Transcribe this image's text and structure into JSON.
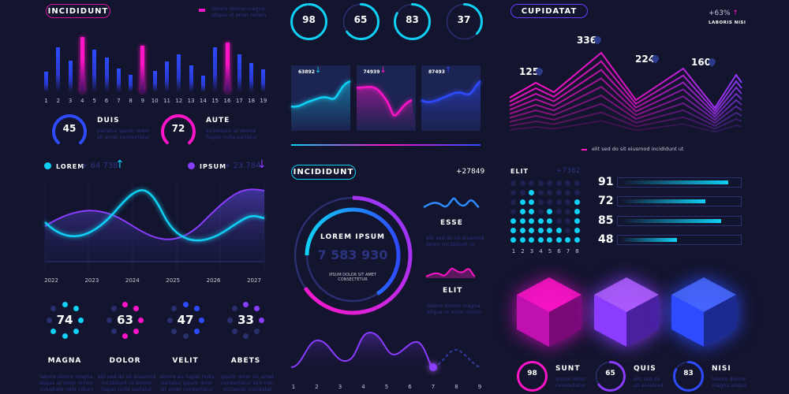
{
  "left": {
    "header_pill": "INCIDIDUNT",
    "legend_text_1": "labore dolore magna",
    "legend_text_2": "aliqua ut enim minim",
    "bars": {
      "categories": [
        "1",
        "2",
        "3",
        "4",
        "5",
        "6",
        "7",
        "8",
        "9",
        "10",
        "11",
        "12",
        "13",
        "14",
        "15",
        "16",
        "17",
        "18",
        "19"
      ],
      "values": [
        26,
        57,
        40,
        70,
        54,
        44,
        30,
        22,
        59,
        27,
        39,
        48,
        34,
        21,
        57,
        63,
        48,
        37,
        29
      ],
      "highlight": [
        false,
        false,
        false,
        true,
        false,
        false,
        false,
        false,
        true,
        false,
        false,
        false,
        false,
        false,
        false,
        true,
        false,
        false,
        false
      ]
    },
    "gauges": [
      {
        "value": "45",
        "title": "DUIS",
        "text1": "pariatur ipsum dolor",
        "text2": "sit amet consectetur",
        "color": "#2e4bff"
      },
      {
        "value": "72",
        "title": "AUTE",
        "text1": "incididunt ut dolore",
        "text2": "fugiat nulla pariatur",
        "color": "#ff14c8"
      }
    ],
    "lorem": {
      "label": "LOREM",
      "value": "+ 64 738",
      "arrow": "↑"
    },
    "ipsum": {
      "label": "IPSUM",
      "value": "+ 23 784",
      "arrow": "↓"
    },
    "years": [
      "2022",
      "2023",
      "2024",
      "2025",
      "2026",
      "2027"
    ],
    "dials": [
      {
        "value": "74",
        "title": "MAGNA",
        "lines": [
          "labore dolore magna",
          "aliqua ut enim minim",
          "voluptate velit cillum"
        ],
        "color": "#10d0f5",
        "on": [
          0,
          1,
          2,
          3,
          4,
          5
        ]
      },
      {
        "value": "63",
        "title": "DOLOR",
        "lines": [
          "elit sed do sit eiusmod",
          "incididunt ut dolore",
          "fugiat nulla pariatur"
        ],
        "color": "#ff14c8",
        "on": [
          0,
          1,
          2,
          3,
          4
        ]
      },
      {
        "value": "47",
        "title": "VELIT",
        "lines": [
          "dolore eu fugiat nulla",
          "pariatur ipsum dolor",
          "sit amet consectetur"
        ],
        "color": "#2e4bff",
        "on": [
          0,
          1,
          2,
          3
        ]
      },
      {
        "value": "33",
        "title": "ABETS",
        "lines": [
          "ipsum dolor sit amet",
          "consectetur sint non",
          "occaecat cupidatat"
        ],
        "color": "#8a3cff",
        "on": [
          0,
          1,
          2
        ]
      }
    ]
  },
  "middle": {
    "rings": [
      {
        "value": "98",
        "pct": 0.98
      },
      {
        "value": "65",
        "pct": 0.65
      },
      {
        "value": "83",
        "pct": 0.83
      },
      {
        "value": "37",
        "pct": 0.37
      }
    ],
    "cards": [
      {
        "value": "63892",
        "arrow": "↓",
        "color": "#10d0f5"
      },
      {
        "value": "74939",
        "arrow": "↓",
        "color": "#ff14c8"
      },
      {
        "value": "87493",
        "arrow": "↑",
        "color": "#2e4bff"
      }
    ],
    "pill": "INCIDIDUNT",
    "count": "+27849",
    "donut": {
      "title": "LOREM IPSUM",
      "value": "7 583 930",
      "sub1": "IPSUM DOLOR SIT AMET",
      "sub2": "CONSECTETUR"
    },
    "esse": {
      "title": "ESSE",
      "text1": "elit sed do sit eiusmod",
      "text2": "lorem incididunt ut"
    },
    "elit": {
      "title": "ELIT",
      "text1": "labore dolore magna",
      "text2": "aliqua ut enim minim"
    },
    "wave_ticks": [
      "1",
      "2",
      "3",
      "4",
      "5",
      "6",
      "7",
      "8",
      "9"
    ]
  },
  "right": {
    "pill": "CUPIDATAT",
    "pct": "+63%",
    "pct_arrow": "↑",
    "pct_label": "LABORIS NISI",
    "peaks": [
      "125",
      "336",
      "224",
      "160"
    ],
    "legend": "elit sed do sit eiusmod incididunt ut",
    "elit": {
      "title": "ELIT",
      "value": "+7382",
      "columns": [
        "1",
        "2",
        "3",
        "4",
        "5",
        "6",
        "7",
        "8"
      ],
      "heights": [
        3,
        5,
        6,
        3,
        4,
        2,
        1,
        5
      ]
    },
    "hbars": [
      {
        "value": "91"
      },
      {
        "value": "72"
      },
      {
        "value": "85"
      },
      {
        "value": "48"
      }
    ],
    "stats": [
      {
        "value": "98",
        "title": "SUNT",
        "text1": "ipsum dolor",
        "text2": "consectetur",
        "color": "#ff14c8",
        "pct": 0.98
      },
      {
        "value": "65",
        "title": "QUIS",
        "text1": "elit sed do",
        "text2": "sit eiusmod",
        "color": "#8a3cff",
        "pct": 0.65
      },
      {
        "value": "83",
        "title": "NISI",
        "text1": "labore dolore",
        "text2": "magna aliqua",
        "color": "#2e4bff",
        "pct": 0.83
      }
    ]
  }
}
